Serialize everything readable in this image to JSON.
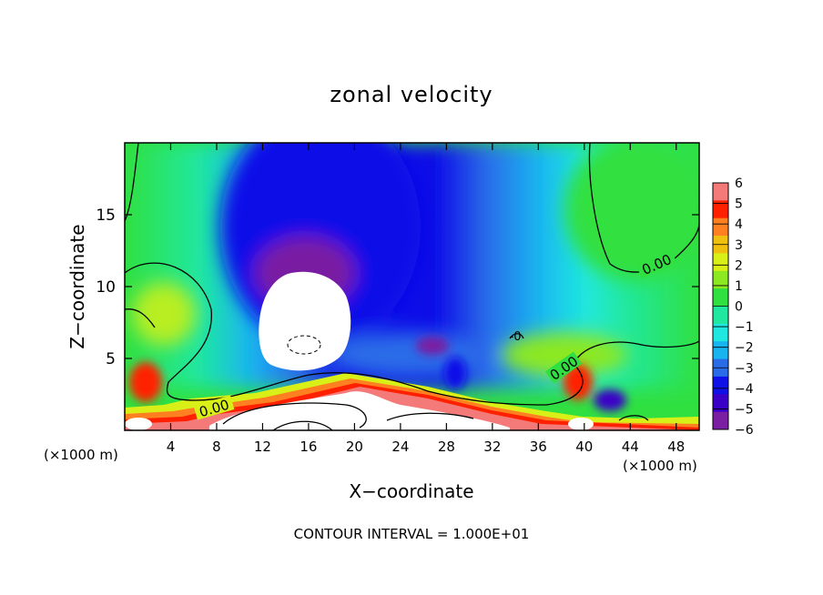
{
  "chart_data": {
    "type": "heatmap",
    "title": "zonal velocity",
    "xlabel": "X−coordinate",
    "ylabel": "Z−coordinate",
    "x_unit": "(×1000 m)",
    "y_unit": "(×1000 m)",
    "xlim": [
      0,
      50
    ],
    "ylim": [
      0,
      20
    ],
    "x_ticks": [
      4,
      8,
      12,
      16,
      20,
      24,
      28,
      32,
      36,
      40,
      44,
      48
    ],
    "y_ticks": [
      5,
      10,
      15
    ],
    "colorbar": {
      "min": -6,
      "max": 6,
      "ticks": [
        6,
        5,
        4,
        3,
        2,
        1,
        0,
        -1,
        -2,
        -3,
        -4,
        -5,
        -6
      ],
      "tick_labels": [
        "6",
        "5",
        "4",
        "3",
        "2",
        "1",
        "0",
        "−1",
        "−2",
        "−3",
        "−4",
        "−5",
        "−6"
      ]
    },
    "contour_labels": [
      {
        "text": "0.00",
        "x": 47,
        "z": 11
      },
      {
        "text": "0.00",
        "x": 7.5,
        "z": 1.5
      },
      {
        "text": "0.00",
        "x": 38.5,
        "z": 4.5
      },
      {
        "text": "-0",
        "x": 34,
        "z": 6.5
      }
    ],
    "footer": "CONTOUR INTERVAL = 1.000E+01"
  },
  "colors": {
    "ramp": [
      "#7a1fa2",
      "#3a00c8",
      "#1010e8",
      "#2a6ce8",
      "#18b4f0",
      "#20e8e0",
      "#20e8a0",
      "#30e040",
      "#8ce820",
      "#d8f018",
      "#f0c010",
      "#ff8020",
      "#ff2000",
      "#f47a7a"
    ]
  }
}
